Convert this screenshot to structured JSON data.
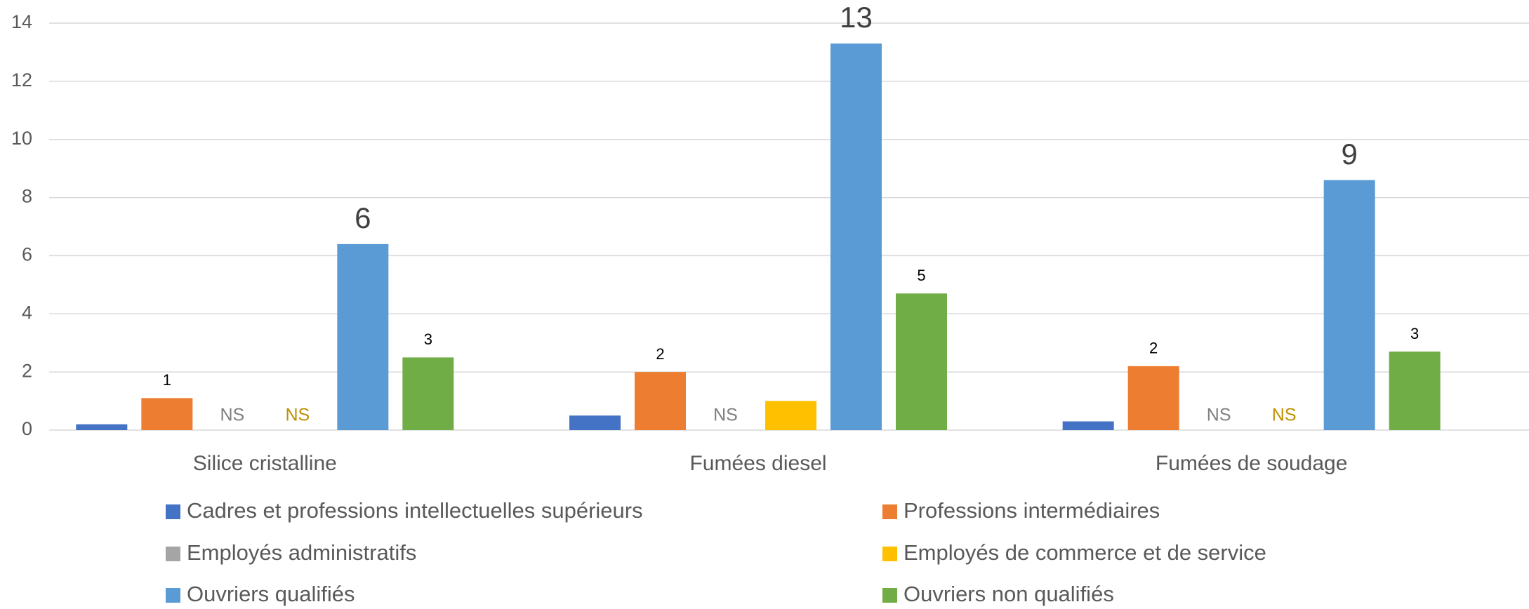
{
  "chart_data": {
    "type": "bar",
    "categories": [
      "Silice cristalline",
      "Fumées diesel",
      "Fumées de soudage"
    ],
    "series": [
      {
        "name": "Cadres et professions intellectuelles supérieurs",
        "color": "#4472c4",
        "values": [
          0.2,
          0.5,
          0.3
        ]
      },
      {
        "name": "Professions intermédiaires",
        "color": "#ed7d31",
        "values": [
          1.1,
          2.0,
          2.2
        ],
        "value_labels": [
          "1",
          "2",
          "2"
        ]
      },
      {
        "name": "Employés administratifs",
        "color": "#a5a5a5",
        "values": [
          null,
          null,
          null
        ],
        "value_labels": [
          "NS",
          "NS",
          "NS"
        ]
      },
      {
        "name": "Employés de commerce et de service",
        "color": "#ffc000",
        "values": [
          null,
          1.0,
          null
        ],
        "value_labels": [
          "NS",
          null,
          "NS"
        ]
      },
      {
        "name": "Ouvriers qualifiés",
        "color": "#5b9bd5",
        "values": [
          6.4,
          13.3,
          8.6
        ],
        "value_labels": [
          "6",
          "13",
          "9"
        ]
      },
      {
        "name": "Ouvriers non qualifiés",
        "color": "#70ad47",
        "values": [
          2.5,
          4.7,
          2.7
        ],
        "value_labels": [
          "3",
          "5",
          "3"
        ]
      }
    ],
    "ylim": [
      0,
      14
    ],
    "yticks": [
      0,
      2,
      4,
      6,
      8,
      10,
      12,
      14
    ],
    "grid": true,
    "legend": "bottom"
  }
}
